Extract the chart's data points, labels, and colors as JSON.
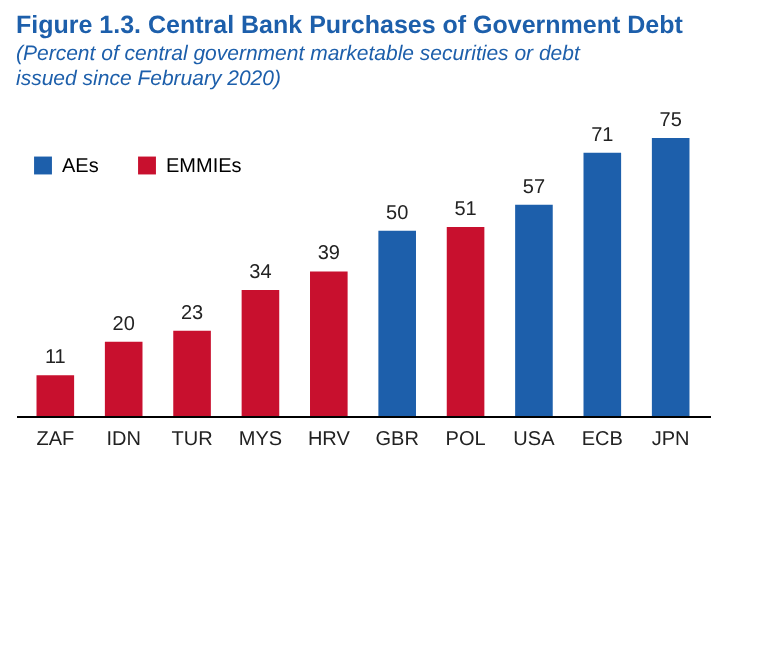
{
  "chart_data": {
    "type": "bar",
    "title": "Figure 1.3. Central Bank Purchases of Government Debt",
    "subtitle": "(Percent of central government marketable securities or debt issued since February 2020)",
    "categories": [
      "ZAF",
      "IDN",
      "TUR",
      "MYS",
      "HRV",
      "GBR",
      "POL",
      "USA",
      "ECB",
      "JPN"
    ],
    "series": [
      {
        "name": "AEs",
        "color": "#1d5fab",
        "values": [
          null,
          null,
          null,
          null,
          null,
          50,
          null,
          57,
          71,
          75
        ]
      },
      {
        "name": "EMMIEs",
        "color": "#c8102e",
        "values": [
          11,
          20,
          23,
          34,
          39,
          null,
          51,
          null,
          null,
          null
        ]
      }
    ],
    "data_labels": true,
    "legend": "top left",
    "grid": false,
    "tick_labels": "x"
  }
}
